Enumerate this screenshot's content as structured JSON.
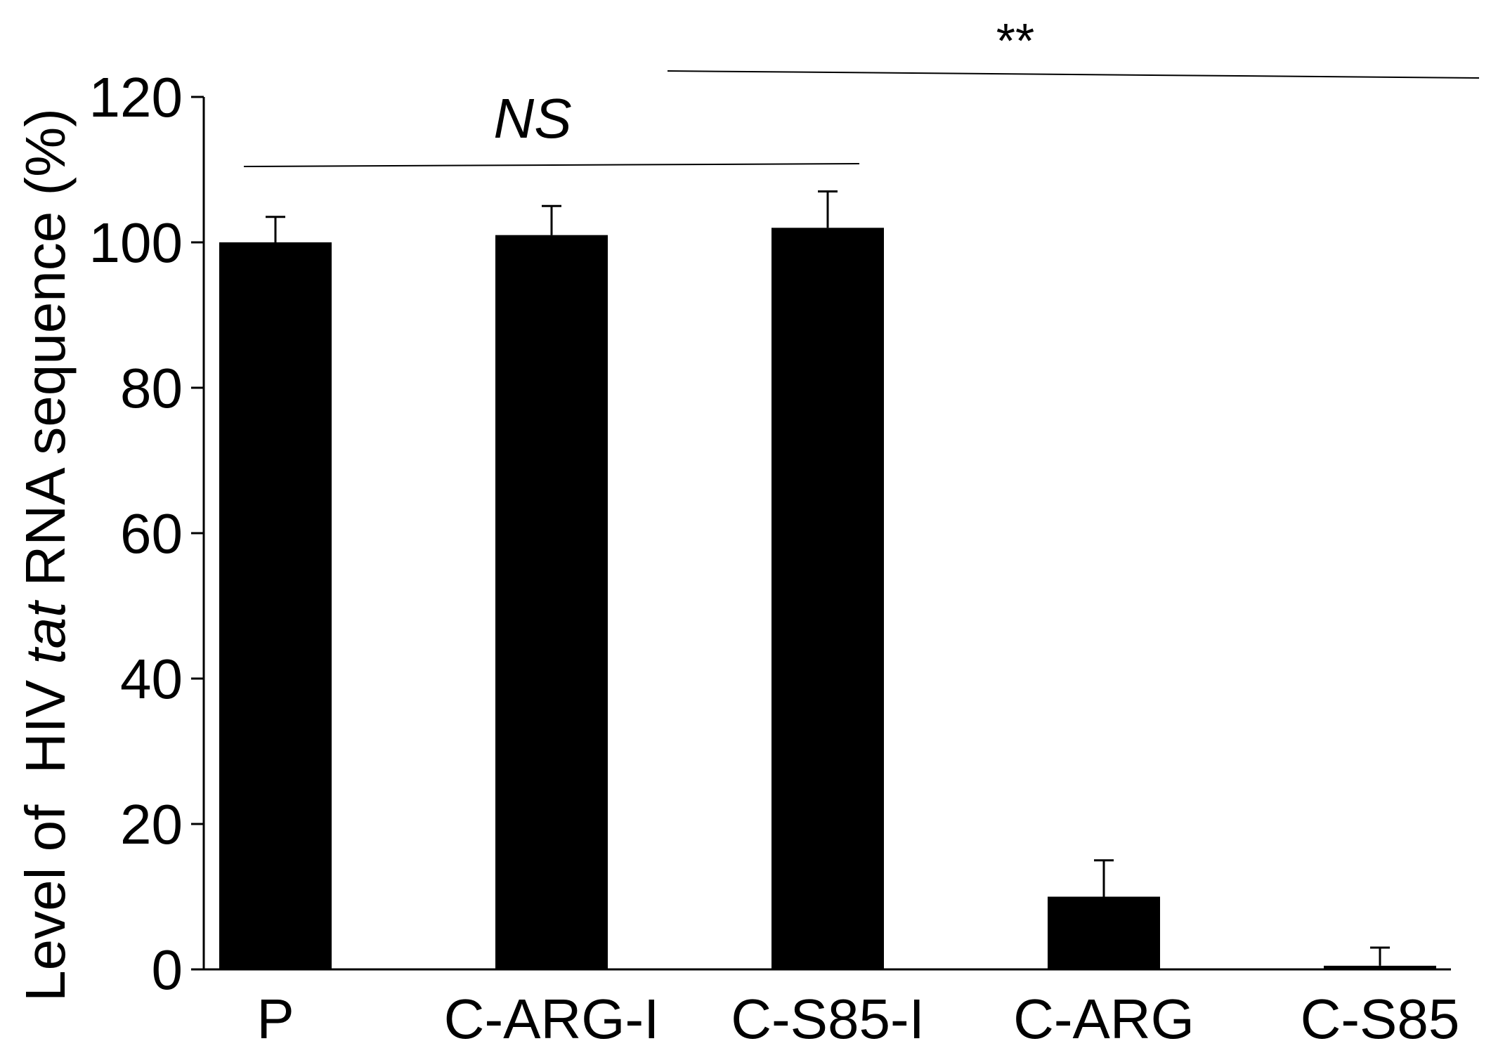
{
  "chart_data": {
    "type": "bar",
    "categories": [
      "P",
      "C-ARG-I",
      "C-S85-I",
      "C-ARG",
      "C-S85"
    ],
    "values": [
      100,
      101,
      102,
      10,
      0.5
    ],
    "errors": [
      3.5,
      4,
      5,
      5,
      2.5
    ],
    "ylabel": {
      "prefix": "Level of  HIV ",
      "italic": "tat",
      "suffix": " RNA sequence (%)"
    },
    "xlabel": "",
    "ylim": [
      0,
      120
    ],
    "yticks": [
      0,
      20,
      40,
      60,
      80,
      100,
      120
    ],
    "grid": false,
    "bar_color": "#000000",
    "annotations": [
      {
        "text": "NS",
        "italic": true,
        "from": 0,
        "to": 2
      },
      {
        "text": "**",
        "italic": false,
        "from": 1.5,
        "to": 4.5
      }
    ]
  }
}
